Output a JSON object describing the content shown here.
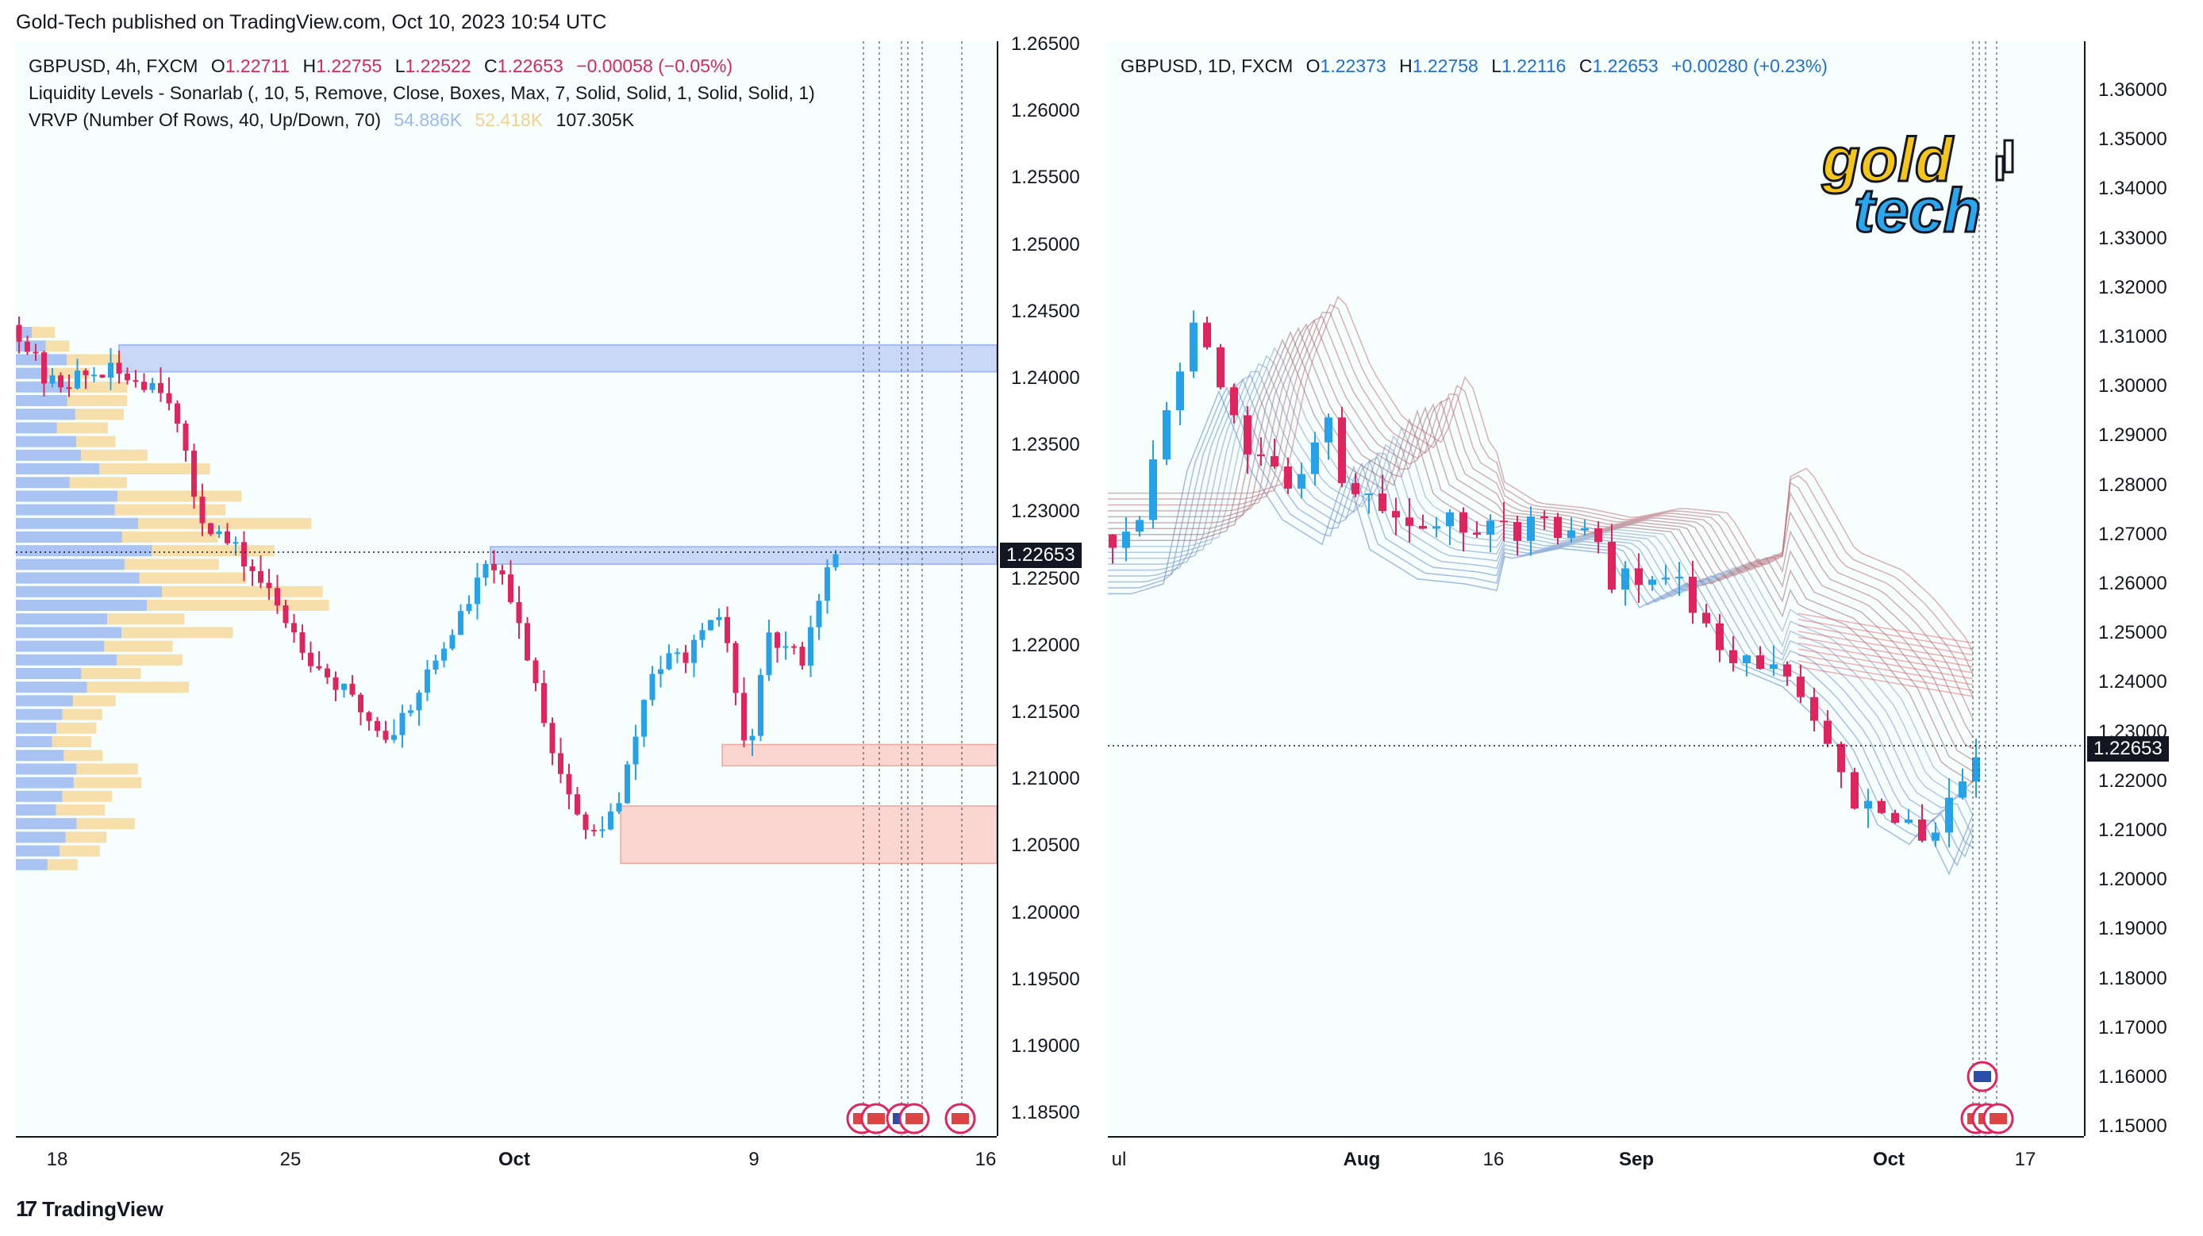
{
  "publisher_line": "Gold-Tech published on TradingView.com, Oct 10, 2023 10:54 UTC",
  "footer_brand": "TradingView",
  "colors": {
    "bull": "#26a2e8",
    "bear": "#e0245e",
    "supply_zone": "#c5d4f7",
    "demand_zone": "#fbd5cf",
    "background": "#f6fffe"
  },
  "left_chart": {
    "symbol": "GBPUSD, 4h, FXCM",
    "open_label": "O",
    "open": "1.22711",
    "high_label": "H",
    "high": "1.22755",
    "low_label": "L",
    "low": "1.22522",
    "close_label": "C",
    "close": "1.22653",
    "change": "−0.00058 (−0.05%)",
    "indicator_1": "Liquidity Levels - Sonarlab (, 10, 5, Remove, Close, Boxes, Max, 7, Solid, Solid, 1, Solid, Solid, 1)",
    "indicator_2_name": "VRVP (Number Of Rows, 40, Up/Down, 70)",
    "indicator_2_up": "54.886K",
    "indicator_2_down": "52.418K",
    "indicator_2_total": "107.305K",
    "price_ticks": [
      "1.26500",
      "1.26000",
      "1.25500",
      "1.25000",
      "1.24500",
      "1.24000",
      "1.23500",
      "1.23000",
      "1.22500",
      "1.22000",
      "1.21500",
      "1.21000",
      "1.20500",
      "1.20000",
      "1.19500",
      "1.19000",
      "1.18500"
    ],
    "last_price": "1.22653",
    "time_labels": [
      {
        "text": "18",
        "bold": false
      },
      {
        "text": "25",
        "bold": false
      },
      {
        "text": "Oct",
        "bold": true
      },
      {
        "text": "9",
        "bold": false
      },
      {
        "text": "16",
        "bold": false
      }
    ],
    "event_icons": [
      "us-flag-icon",
      "us-flag-icon",
      "uk-flag-icon",
      "us-flag-icon",
      "us-flag-icon"
    ]
  },
  "right_chart": {
    "symbol": "GBPUSD, 1D, FXCM",
    "open_label": "O",
    "open": "1.22373",
    "high_label": "H",
    "high": "1.22758",
    "low_label": "L",
    "low": "1.22116",
    "close_label": "C",
    "close": "1.22653",
    "change": "+0.00280 (+0.23%)",
    "price_ticks": [
      "1.36000",
      "1.35000",
      "1.34000",
      "1.33000",
      "1.32000",
      "1.31000",
      "1.30000",
      "1.29000",
      "1.28000",
      "1.27000",
      "1.26000",
      "1.25000",
      "1.24000",
      "1.23000",
      "1.22000",
      "1.21000",
      "1.20000",
      "1.19000",
      "1.18000",
      "1.17000",
      "1.16000",
      "1.15000"
    ],
    "last_price": "1.22653",
    "time_labels": [
      {
        "text": "ul",
        "bold": false
      },
      {
        "text": "Aug",
        "bold": true
      },
      {
        "text": "16",
        "bold": false
      },
      {
        "text": "Sep",
        "bold": true
      },
      {
        "text": "Oct",
        "bold": true
      },
      {
        "text": "17",
        "bold": false
      }
    ],
    "logo_line_1": "gold",
    "logo_line_2": "tech",
    "event_icons": [
      "uk-flag-icon",
      "us-flag-icon",
      "us-flag-icon",
      "us-flag-icon"
    ]
  }
}
